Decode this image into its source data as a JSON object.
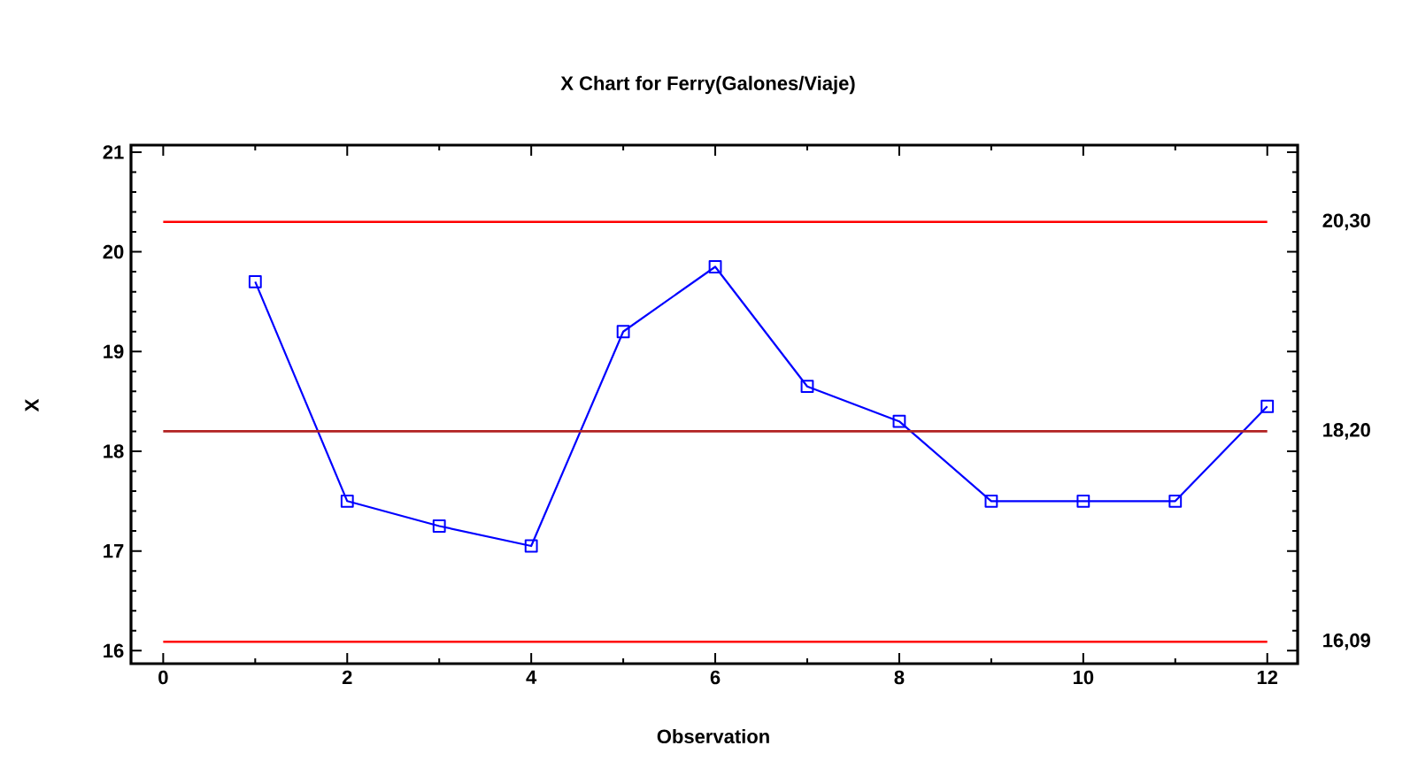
{
  "chart_data": {
    "type": "line",
    "title": "X Chart for Ferry(Galones/Viaje)",
    "xlabel": "Observation",
    "ylabel": "X",
    "x": [
      1,
      2,
      3,
      4,
      5,
      6,
      7,
      8,
      9,
      10,
      11,
      12
    ],
    "series": [
      {
        "color": "#0000ff",
        "values": [
          19.7,
          17.5,
          17.25,
          17.05,
          19.2,
          19.85,
          18.65,
          18.3,
          17.5,
          17.5,
          17.5,
          18.45
        ]
      }
    ],
    "xlim": [
      -0.35,
      12.33
    ],
    "ylim": [
      15.87,
      21.07
    ],
    "xticks": [
      0,
      2,
      4,
      6,
      8,
      10,
      12
    ],
    "yticks": [
      16,
      17,
      18,
      19,
      20,
      21
    ],
    "ref_lines": [
      {
        "axis": "y",
        "value": 20.3,
        "label": "20,30",
        "color": "#ff0000",
        "line_style": "solid"
      },
      {
        "axis": "y",
        "value": 18.2,
        "label": "18,20",
        "color": "#b22222",
        "line_style": "solid"
      },
      {
        "axis": "y",
        "value": 16.09,
        "label": "16,09",
        "color": "#ff0000",
        "line_style": "solid"
      }
    ],
    "grid": false,
    "marker": "square",
    "line_style": "solid"
  }
}
